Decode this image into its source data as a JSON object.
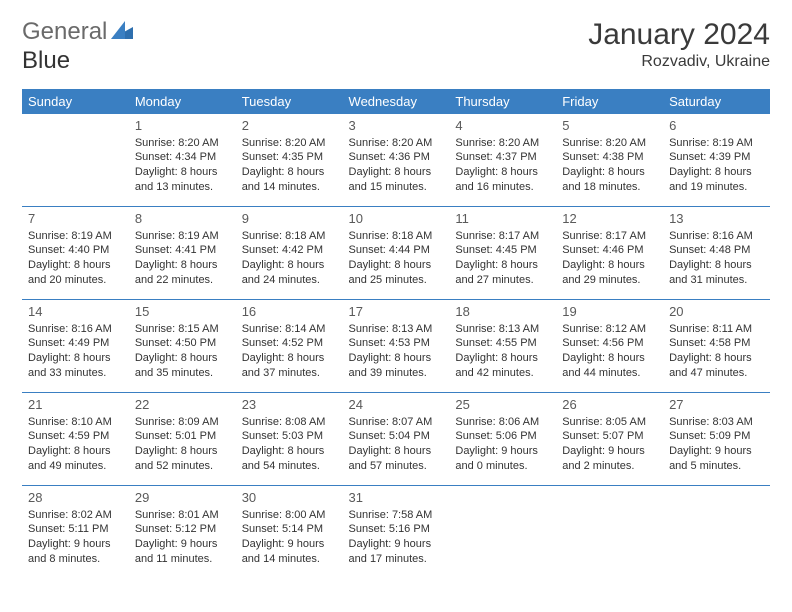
{
  "brand": {
    "part1": "General",
    "part2": "Blue"
  },
  "title": "January 2024",
  "location": "Rozvadiv, Ukraine",
  "colors": {
    "accent": "#3a7fc2",
    "text": "#333333",
    "header_text": "#ffffff"
  },
  "weekdays": [
    "Sunday",
    "Monday",
    "Tuesday",
    "Wednesday",
    "Thursday",
    "Friday",
    "Saturday"
  ],
  "weeks": [
    [
      null,
      {
        "n": "1",
        "sr": "Sunrise: 8:20 AM",
        "ss": "Sunset: 4:34 PM",
        "d1": "Daylight: 8 hours",
        "d2": "and 13 minutes."
      },
      {
        "n": "2",
        "sr": "Sunrise: 8:20 AM",
        "ss": "Sunset: 4:35 PM",
        "d1": "Daylight: 8 hours",
        "d2": "and 14 minutes."
      },
      {
        "n": "3",
        "sr": "Sunrise: 8:20 AM",
        "ss": "Sunset: 4:36 PM",
        "d1": "Daylight: 8 hours",
        "d2": "and 15 minutes."
      },
      {
        "n": "4",
        "sr": "Sunrise: 8:20 AM",
        "ss": "Sunset: 4:37 PM",
        "d1": "Daylight: 8 hours",
        "d2": "and 16 minutes."
      },
      {
        "n": "5",
        "sr": "Sunrise: 8:20 AM",
        "ss": "Sunset: 4:38 PM",
        "d1": "Daylight: 8 hours",
        "d2": "and 18 minutes."
      },
      {
        "n": "6",
        "sr": "Sunrise: 8:19 AM",
        "ss": "Sunset: 4:39 PM",
        "d1": "Daylight: 8 hours",
        "d2": "and 19 minutes."
      }
    ],
    [
      {
        "n": "7",
        "sr": "Sunrise: 8:19 AM",
        "ss": "Sunset: 4:40 PM",
        "d1": "Daylight: 8 hours",
        "d2": "and 20 minutes."
      },
      {
        "n": "8",
        "sr": "Sunrise: 8:19 AM",
        "ss": "Sunset: 4:41 PM",
        "d1": "Daylight: 8 hours",
        "d2": "and 22 minutes."
      },
      {
        "n": "9",
        "sr": "Sunrise: 8:18 AM",
        "ss": "Sunset: 4:42 PM",
        "d1": "Daylight: 8 hours",
        "d2": "and 24 minutes."
      },
      {
        "n": "10",
        "sr": "Sunrise: 8:18 AM",
        "ss": "Sunset: 4:44 PM",
        "d1": "Daylight: 8 hours",
        "d2": "and 25 minutes."
      },
      {
        "n": "11",
        "sr": "Sunrise: 8:17 AM",
        "ss": "Sunset: 4:45 PM",
        "d1": "Daylight: 8 hours",
        "d2": "and 27 minutes."
      },
      {
        "n": "12",
        "sr": "Sunrise: 8:17 AM",
        "ss": "Sunset: 4:46 PM",
        "d1": "Daylight: 8 hours",
        "d2": "and 29 minutes."
      },
      {
        "n": "13",
        "sr": "Sunrise: 8:16 AM",
        "ss": "Sunset: 4:48 PM",
        "d1": "Daylight: 8 hours",
        "d2": "and 31 minutes."
      }
    ],
    [
      {
        "n": "14",
        "sr": "Sunrise: 8:16 AM",
        "ss": "Sunset: 4:49 PM",
        "d1": "Daylight: 8 hours",
        "d2": "and 33 minutes."
      },
      {
        "n": "15",
        "sr": "Sunrise: 8:15 AM",
        "ss": "Sunset: 4:50 PM",
        "d1": "Daylight: 8 hours",
        "d2": "and 35 minutes."
      },
      {
        "n": "16",
        "sr": "Sunrise: 8:14 AM",
        "ss": "Sunset: 4:52 PM",
        "d1": "Daylight: 8 hours",
        "d2": "and 37 minutes."
      },
      {
        "n": "17",
        "sr": "Sunrise: 8:13 AM",
        "ss": "Sunset: 4:53 PM",
        "d1": "Daylight: 8 hours",
        "d2": "and 39 minutes."
      },
      {
        "n": "18",
        "sr": "Sunrise: 8:13 AM",
        "ss": "Sunset: 4:55 PM",
        "d1": "Daylight: 8 hours",
        "d2": "and 42 minutes."
      },
      {
        "n": "19",
        "sr": "Sunrise: 8:12 AM",
        "ss": "Sunset: 4:56 PM",
        "d1": "Daylight: 8 hours",
        "d2": "and 44 minutes."
      },
      {
        "n": "20",
        "sr": "Sunrise: 8:11 AM",
        "ss": "Sunset: 4:58 PM",
        "d1": "Daylight: 8 hours",
        "d2": "and 47 minutes."
      }
    ],
    [
      {
        "n": "21",
        "sr": "Sunrise: 8:10 AM",
        "ss": "Sunset: 4:59 PM",
        "d1": "Daylight: 8 hours",
        "d2": "and 49 minutes."
      },
      {
        "n": "22",
        "sr": "Sunrise: 8:09 AM",
        "ss": "Sunset: 5:01 PM",
        "d1": "Daylight: 8 hours",
        "d2": "and 52 minutes."
      },
      {
        "n": "23",
        "sr": "Sunrise: 8:08 AM",
        "ss": "Sunset: 5:03 PM",
        "d1": "Daylight: 8 hours",
        "d2": "and 54 minutes."
      },
      {
        "n": "24",
        "sr": "Sunrise: 8:07 AM",
        "ss": "Sunset: 5:04 PM",
        "d1": "Daylight: 8 hours",
        "d2": "and 57 minutes."
      },
      {
        "n": "25",
        "sr": "Sunrise: 8:06 AM",
        "ss": "Sunset: 5:06 PM",
        "d1": "Daylight: 9 hours",
        "d2": "and 0 minutes."
      },
      {
        "n": "26",
        "sr": "Sunrise: 8:05 AM",
        "ss": "Sunset: 5:07 PM",
        "d1": "Daylight: 9 hours",
        "d2": "and 2 minutes."
      },
      {
        "n": "27",
        "sr": "Sunrise: 8:03 AM",
        "ss": "Sunset: 5:09 PM",
        "d1": "Daylight: 9 hours",
        "d2": "and 5 minutes."
      }
    ],
    [
      {
        "n": "28",
        "sr": "Sunrise: 8:02 AM",
        "ss": "Sunset: 5:11 PM",
        "d1": "Daylight: 9 hours",
        "d2": "and 8 minutes."
      },
      {
        "n": "29",
        "sr": "Sunrise: 8:01 AM",
        "ss": "Sunset: 5:12 PM",
        "d1": "Daylight: 9 hours",
        "d2": "and 11 minutes."
      },
      {
        "n": "30",
        "sr": "Sunrise: 8:00 AM",
        "ss": "Sunset: 5:14 PM",
        "d1": "Daylight: 9 hours",
        "d2": "and 14 minutes."
      },
      {
        "n": "31",
        "sr": "Sunrise: 7:58 AM",
        "ss": "Sunset: 5:16 PM",
        "d1": "Daylight: 9 hours",
        "d2": "and 17 minutes."
      },
      null,
      null,
      null
    ]
  ]
}
